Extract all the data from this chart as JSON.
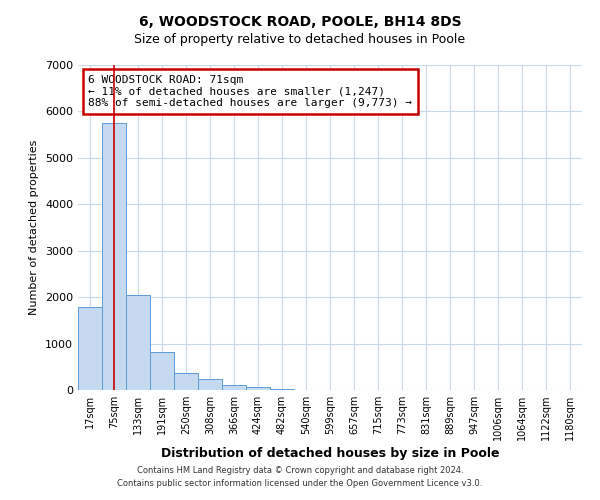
{
  "title": "6, WOODSTOCK ROAD, POOLE, BH14 8DS",
  "subtitle": "Size of property relative to detached houses in Poole",
  "xlabel": "Distribution of detached houses by size in Poole",
  "ylabel": "Number of detached properties",
  "bar_labels": [
    "17sqm",
    "75sqm",
    "133sqm",
    "191sqm",
    "250sqm",
    "308sqm",
    "366sqm",
    "424sqm",
    "482sqm",
    "540sqm",
    "599sqm",
    "657sqm",
    "715sqm",
    "773sqm",
    "831sqm",
    "889sqm",
    "947sqm",
    "1006sqm",
    "1064sqm",
    "1122sqm",
    "1180sqm"
  ],
  "bar_values": [
    1780,
    5760,
    2050,
    820,
    370,
    230,
    105,
    60,
    30,
    10,
    0,
    0,
    0,
    0,
    0,
    0,
    0,
    0,
    0,
    0,
    0
  ],
  "bar_color": "#c5d9f0",
  "bar_edge_color": "#5b9bd5",
  "vline_x": 1.0,
  "vline_color": "#cc0000",
  "annotation_text": "6 WOODSTOCK ROAD: 71sqm\n← 11% of detached houses are smaller (1,247)\n88% of semi-detached houses are larger (9,773) →",
  "annotation_box_color": "#ffffff",
  "annotation_box_edge": "#cc0000",
  "ylim": [
    0,
    7000
  ],
  "yticks": [
    0,
    1000,
    2000,
    3000,
    4000,
    5000,
    6000,
    7000
  ],
  "bg_color": "#ffffff",
  "grid_color": "#c8d8e8",
  "footer_line1": "Contains HM Land Registry data © Crown copyright and database right 2024.",
  "footer_line2": "Contains public sector information licensed under the Open Government Licence v3.0."
}
